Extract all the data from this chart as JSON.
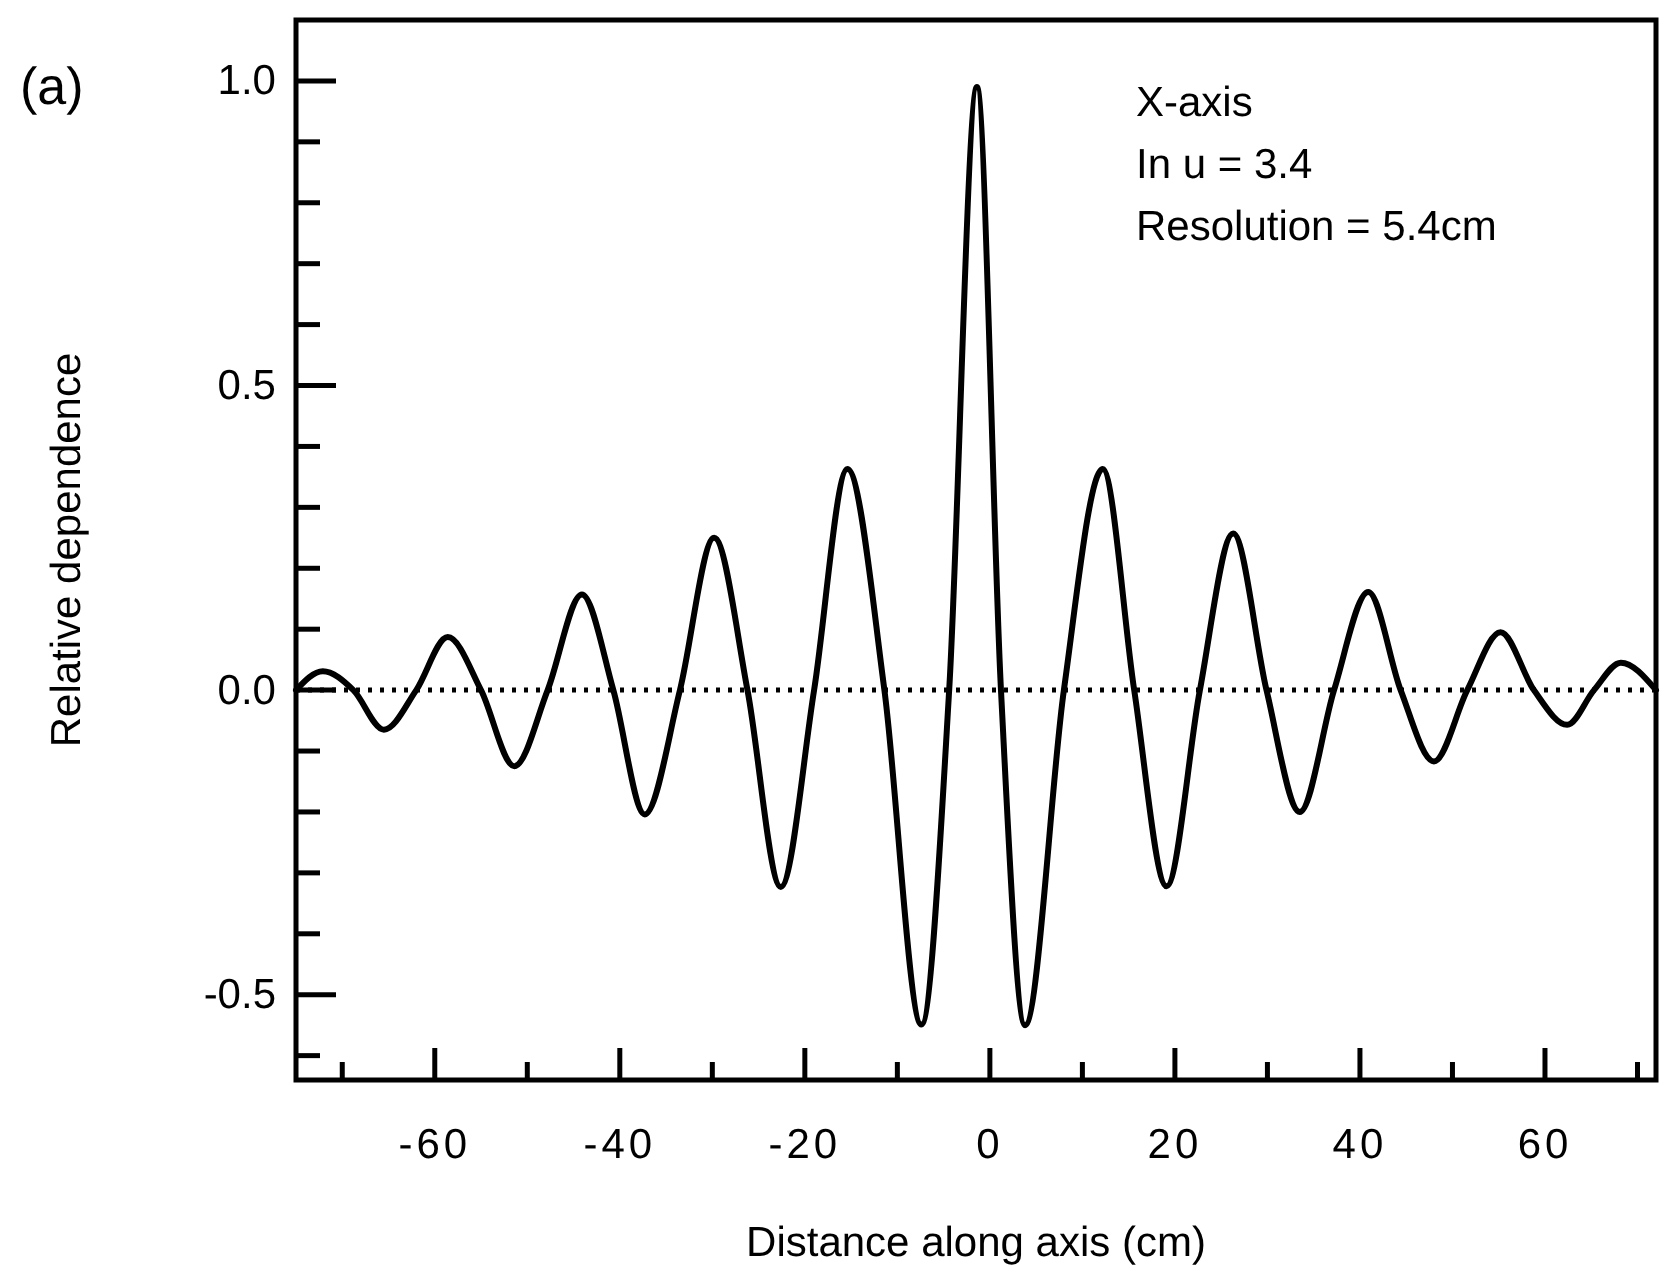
{
  "chart_data": {
    "type": "line",
    "title": "(a)",
    "xlabel": "Distance along axis (cm)",
    "ylabel": "Relative dependence",
    "annotations": [
      "X-axis",
      "In u = 3.4",
      "Resolution = 5.4cm"
    ],
    "xlim": [
      -75,
      72
    ],
    "ylim": [
      -0.64,
      1.1
    ],
    "xticks": [
      {
        "value": -70,
        "label": null
      },
      -60,
      {
        "value": -50,
        "label": null
      },
      -40,
      {
        "value": -30,
        "label": null
      },
      -20,
      {
        "value": -10,
        "label": null
      },
      0,
      {
        "value": 10,
        "label": null
      },
      20,
      {
        "value": 30,
        "label": null
      },
      40,
      {
        "value": 50,
        "label": null
      },
      60,
      {
        "value": 70,
        "label": null
      }
    ],
    "yticks": [
      {
        "value": -0.6,
        "label": null
      },
      -0.5,
      {
        "value": -0.4,
        "label": null
      },
      {
        "value": -0.3,
        "label": null
      },
      {
        "value": -0.2,
        "label": null
      },
      {
        "value": -0.1,
        "label": null
      },
      {
        "value": 0,
        "label": "0.0"
      },
      {
        "value": 0.1,
        "label": null
      },
      {
        "value": 0.2,
        "label": null
      },
      {
        "value": 0.3,
        "label": null
      },
      {
        "value": 0.4,
        "label": null
      },
      0.5,
      {
        "value": 0.6,
        "label": null
      },
      {
        "value": 0.7,
        "label": null
      },
      {
        "value": 0.8,
        "label": null
      },
      {
        "value": 0.9,
        "label": null
      },
      {
        "value": 1,
        "label": "1.0"
      }
    ],
    "grid": false,
    "marker": "none",
    "line_style": "solid",
    "ref_lines": [
      {
        "axis": "y",
        "value": 0,
        "line_style": "dotted",
        "color": "#000000"
      }
    ],
    "series": [
      {
        "color": "#000000",
        "x": [
          -75,
          -72.1,
          -68.8,
          -65.5,
          -62.0,
          -58.6,
          -55.0,
          -51.4,
          -47.8,
          -44.1,
          -40.7,
          -37.3,
          -33.5,
          -29.8,
          -26.2,
          -22.6,
          -19.0,
          -15.4,
          -11.4,
          -7.4,
          -4.4,
          -1.4,
          1.2,
          3.8,
          8.0,
          12.2,
          15.6,
          19.1,
          22.7,
          26.3,
          29.9,
          33.5,
          37.2,
          40.9,
          44.4,
          48.0,
          51.6,
          55.2,
          58.8,
          62.4,
          65.3,
          68.2,
          72
        ],
        "values": [
          0,
          0.031,
          0,
          -0.065,
          0,
          0.087,
          0,
          -0.125,
          0,
          0.157,
          0,
          -0.204,
          0,
          0.25,
          0,
          -0.323,
          0,
          0.363,
          0,
          -0.549,
          0,
          0.99,
          0,
          -0.55,
          0,
          0.363,
          0,
          -0.322,
          0,
          0.257,
          0,
          -0.2,
          0,
          0.161,
          0,
          -0.117,
          0,
          0.095,
          0,
          -0.057,
          0,
          0.045,
          0
        ]
      }
    ]
  }
}
